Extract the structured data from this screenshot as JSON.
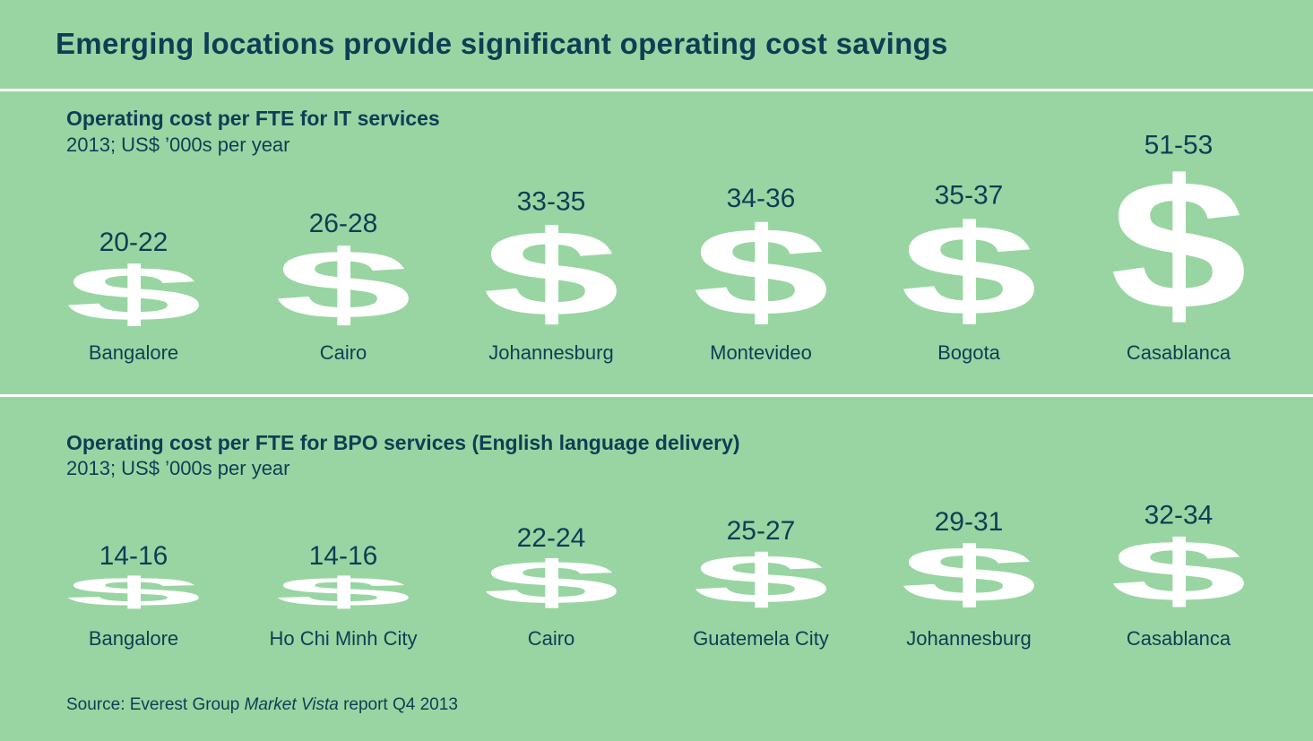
{
  "title": "Emerging locations provide significant operating cost savings",
  "chart_data": [
    {
      "type": "bar",
      "title": "Operating cost per FTE for IT services",
      "subtitle": "2013; US$ ’000s per year",
      "categories": [
        "Bangalore",
        "Cairo",
        "Johannesburg",
        "Montevideo",
        "Bogota",
        "Casablanca"
      ],
      "ranges": [
        [
          20,
          22
        ],
        [
          26,
          28
        ],
        [
          33,
          35
        ],
        [
          34,
          36
        ],
        [
          35,
          37
        ],
        [
          51,
          53
        ]
      ],
      "labels": [
        "20-22",
        "26-28",
        "33-35",
        "34-36",
        "35-37",
        "51-53"
      ]
    },
    {
      "type": "bar",
      "title": "Operating cost per FTE for BPO services (English language delivery)",
      "subtitle": "2013; US$ ’000s per year",
      "categories": [
        "Bangalore",
        "Ho Chi Minh City",
        "Cairo",
        "Guatemela City",
        "Johannesburg",
        "Casablanca"
      ],
      "ranges": [
        [
          14,
          16
        ],
        [
          14,
          16
        ],
        [
          22,
          24
        ],
        [
          25,
          27
        ],
        [
          29,
          31
        ],
        [
          32,
          34
        ]
      ],
      "labels": [
        "14-16",
        "14-16",
        "22-24",
        "25-27",
        "29-31",
        "32-34"
      ]
    }
  ],
  "source": {
    "prefix": "Source: Everest Group ",
    "italic": "Market Vista",
    "suffix": " report Q4 2013"
  },
  "colors": {
    "background": "#99d5a2",
    "text": "#0f3d55",
    "symbol": "#ffffff"
  }
}
